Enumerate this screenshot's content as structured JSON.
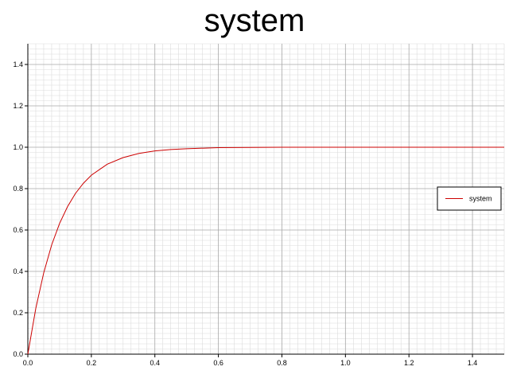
{
  "chart_data": {
    "type": "line",
    "title": "system",
    "xlabel": "",
    "ylabel": "",
    "xlim": [
      0.0,
      1.5
    ],
    "ylim": [
      0.0,
      1.5
    ],
    "x_ticks": [
      "0.0",
      "0.2",
      "0.4",
      "0.6",
      "0.8",
      "1.0",
      "1.2",
      "1.4"
    ],
    "y_ticks": [
      "0.0",
      "0.2",
      "0.4",
      "0.6",
      "0.8",
      "1.0",
      "1.2",
      "1.4"
    ],
    "grid": true,
    "legend_position": "right",
    "series": [
      {
        "name": "system",
        "color": "#cc0000",
        "x": [
          0.0,
          0.025,
          0.05,
          0.075,
          0.1,
          0.125,
          0.15,
          0.175,
          0.2,
          0.25,
          0.3,
          0.35,
          0.4,
          0.45,
          0.5,
          0.6,
          0.7,
          0.8,
          0.9,
          1.0,
          1.2,
          1.5
        ],
        "y": [
          0.0,
          0.221,
          0.393,
          0.528,
          0.632,
          0.713,
          0.777,
          0.826,
          0.865,
          0.918,
          0.95,
          0.97,
          0.982,
          0.989,
          0.993,
          0.998,
          0.999,
          1.0,
          1.0,
          1.0,
          1.0,
          1.0
        ]
      }
    ]
  }
}
